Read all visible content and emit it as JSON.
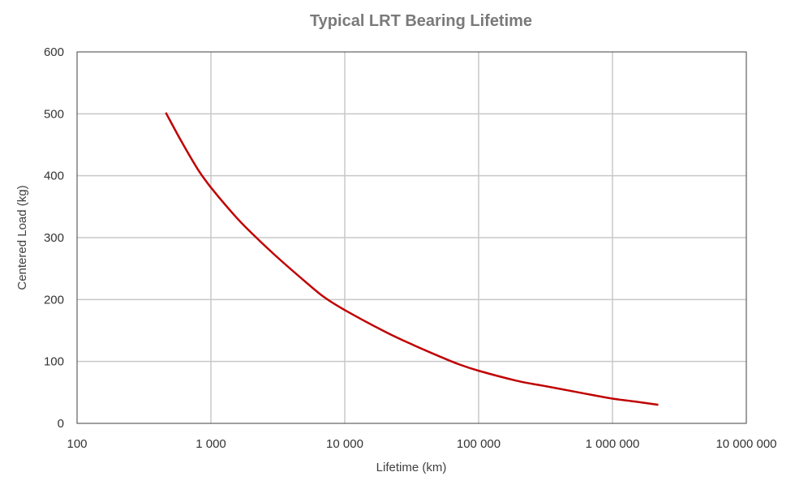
{
  "chart_data": {
    "type": "line",
    "title": "Typical LRT Bearing Lifetime",
    "xlabel": "Lifetime (km)",
    "ylabel": "Centered Load (kg)",
    "x_scale": "log",
    "xlim": [
      100,
      10000000
    ],
    "ylim": [
      0,
      600
    ],
    "x_ticks": [
      100,
      1000,
      10000,
      100000,
      1000000,
      10000000
    ],
    "x_tick_labels": [
      "100",
      "1 000",
      "10 000",
      "100 000",
      "1 000 000",
      "10 000 000"
    ],
    "y_ticks": [
      0,
      100,
      200,
      300,
      400,
      500,
      600
    ],
    "y_tick_labels": [
      "0",
      "100",
      "200",
      "300",
      "400",
      "500",
      "600"
    ],
    "grid": true,
    "legend": "none",
    "colors": {
      "line": "#c00000",
      "grid": "#c8c8c8",
      "frame": "#404040",
      "title": "#7a7a7a"
    },
    "series": [
      {
        "x": [
          460,
          600,
          800,
          1000,
          1500,
          2000,
          3000,
          5000,
          7000,
          10000,
          20000,
          30000,
          50000,
          70000,
          100000,
          200000,
          300000,
          500000,
          700000,
          1000000,
          1500000,
          2200000
        ],
        "y": [
          502,
          456,
          410,
          381,
          336,
          308,
          272,
          230,
          204,
          183,
          148,
          130,
          109,
          96,
          85,
          68,
          61,
          52,
          46,
          40,
          35,
          30
        ]
      }
    ]
  }
}
